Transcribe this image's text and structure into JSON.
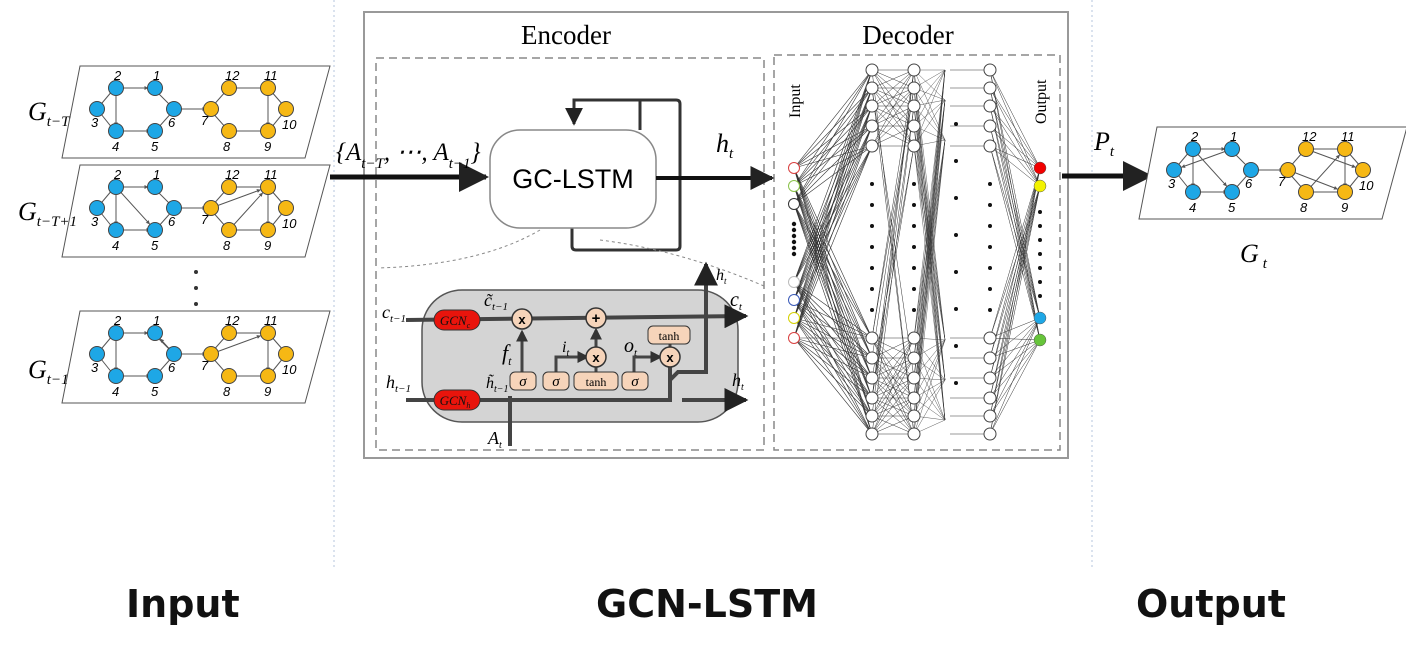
{
  "sections": {
    "input": "Input",
    "gcn_lstm": "GCN-LSTM",
    "output": "Output"
  },
  "encoder": {
    "title": "Encoder",
    "cell_label": "GC-LSTM",
    "hidden_state": "h",
    "hidden_sub": "t"
  },
  "decoder": {
    "title": "Decoder",
    "input_label": "Input",
    "output_label": "Output"
  },
  "input_graphs": [
    {
      "base": "G",
      "sub": "t−T"
    },
    {
      "base": "G",
      "sub": "t−T+1"
    },
    {
      "base": "G",
      "sub": "t−1"
    }
  ],
  "sequence": {
    "open": "{A",
    "sub1": "t−T",
    "mid": ", ⋯, A",
    "sub2": "t−1",
    "close": "}"
  },
  "output_arrow": {
    "base": "P",
    "sub": "t"
  },
  "output_graph": {
    "base": "G",
    "sub": "t"
  },
  "graph_nodes": [
    "1",
    "2",
    "3",
    "4",
    "5",
    "6",
    "7",
    "8",
    "9",
    "10",
    "11",
    "12"
  ],
  "lstm_cell": {
    "c_prev": "c",
    "c_prev_sub": "t−1",
    "h_prev": "h",
    "h_prev_sub": "t−1",
    "c_tilde": "c̃",
    "c_tilde_sub": "t−1",
    "h_tilde": "h̃",
    "h_tilde_sub": "t−1",
    "gcn": "GCN",
    "gcn_c_sub": "c",
    "gcn_h_sub": "h",
    "forget": "f",
    "input_gate": "i",
    "output_gate": "o",
    "gate_sub": "t",
    "sigma": "σ",
    "tanh": "tanh",
    "mult": "x",
    "plus": "+",
    "c_out": "c",
    "h_out": "h",
    "h_top": "h",
    "a_in": "A",
    "t_sub": "t"
  },
  "colors": {
    "blue_node": "#1ea7e6",
    "yellow_node": "#f6b814",
    "gcn_red": "#e8140c",
    "gate_fill": "#f6d4ba",
    "cell_bg": "#d4d4d4",
    "out_red": "#f20000",
    "out_yellow": "#f2f200",
    "out_blue": "#1ea7e6",
    "out_green": "#66c43a"
  }
}
